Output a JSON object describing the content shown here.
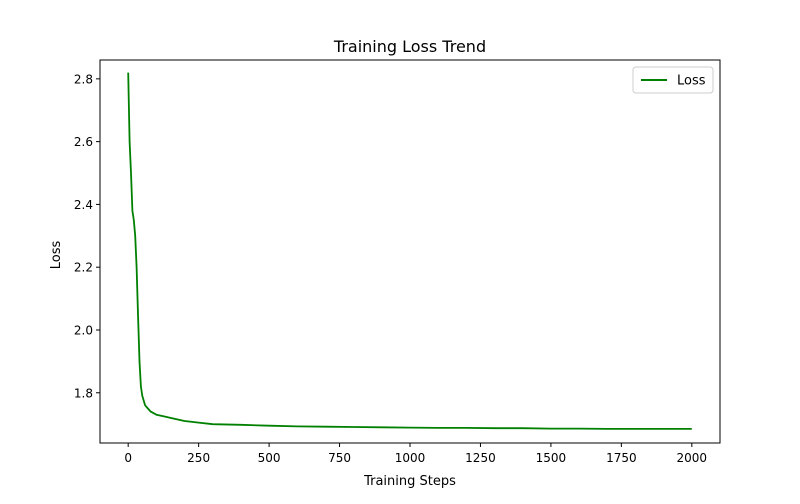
{
  "chart_data": {
    "type": "line",
    "title": "Training Loss Trend",
    "xlabel": "Training Steps",
    "ylabel": "Loss",
    "xlim": [
      -100,
      2100
    ],
    "ylim": [
      1.64,
      2.86
    ],
    "xticks": [
      0,
      250,
      500,
      750,
      1000,
      1250,
      1500,
      1750,
      2000
    ],
    "xtick_labels": [
      "0",
      "250",
      "500",
      "750",
      "1000",
      "1250",
      "1500",
      "1750",
      "2000"
    ],
    "yticks": [
      1.8,
      2.0,
      2.2,
      2.4,
      2.6,
      2.8
    ],
    "ytick_labels": [
      "1.8",
      "2.0",
      "2.2",
      "2.4",
      "2.6",
      "2.8"
    ],
    "grid": false,
    "legend": {
      "position": "top-right"
    },
    "series": [
      {
        "name": "Loss",
        "color": "#008000",
        "x": [
          0,
          5,
          10,
          15,
          20,
          25,
          30,
          35,
          40,
          45,
          50,
          60,
          70,
          80,
          100,
          125,
          150,
          200,
          250,
          300,
          400,
          500,
          600,
          700,
          800,
          900,
          1000,
          1100,
          1200,
          1300,
          1400,
          1500,
          1600,
          1700,
          1800,
          1900,
          2000
        ],
        "y": [
          2.82,
          2.6,
          2.5,
          2.38,
          2.35,
          2.3,
          2.2,
          2.05,
          1.9,
          1.82,
          1.79,
          1.76,
          1.75,
          1.74,
          1.73,
          1.725,
          1.72,
          1.71,
          1.705,
          1.7,
          1.698,
          1.695,
          1.693,
          1.692,
          1.691,
          1.69,
          1.689,
          1.688,
          1.688,
          1.687,
          1.687,
          1.686,
          1.686,
          1.685,
          1.685,
          1.685,
          1.685
        ]
      }
    ]
  }
}
